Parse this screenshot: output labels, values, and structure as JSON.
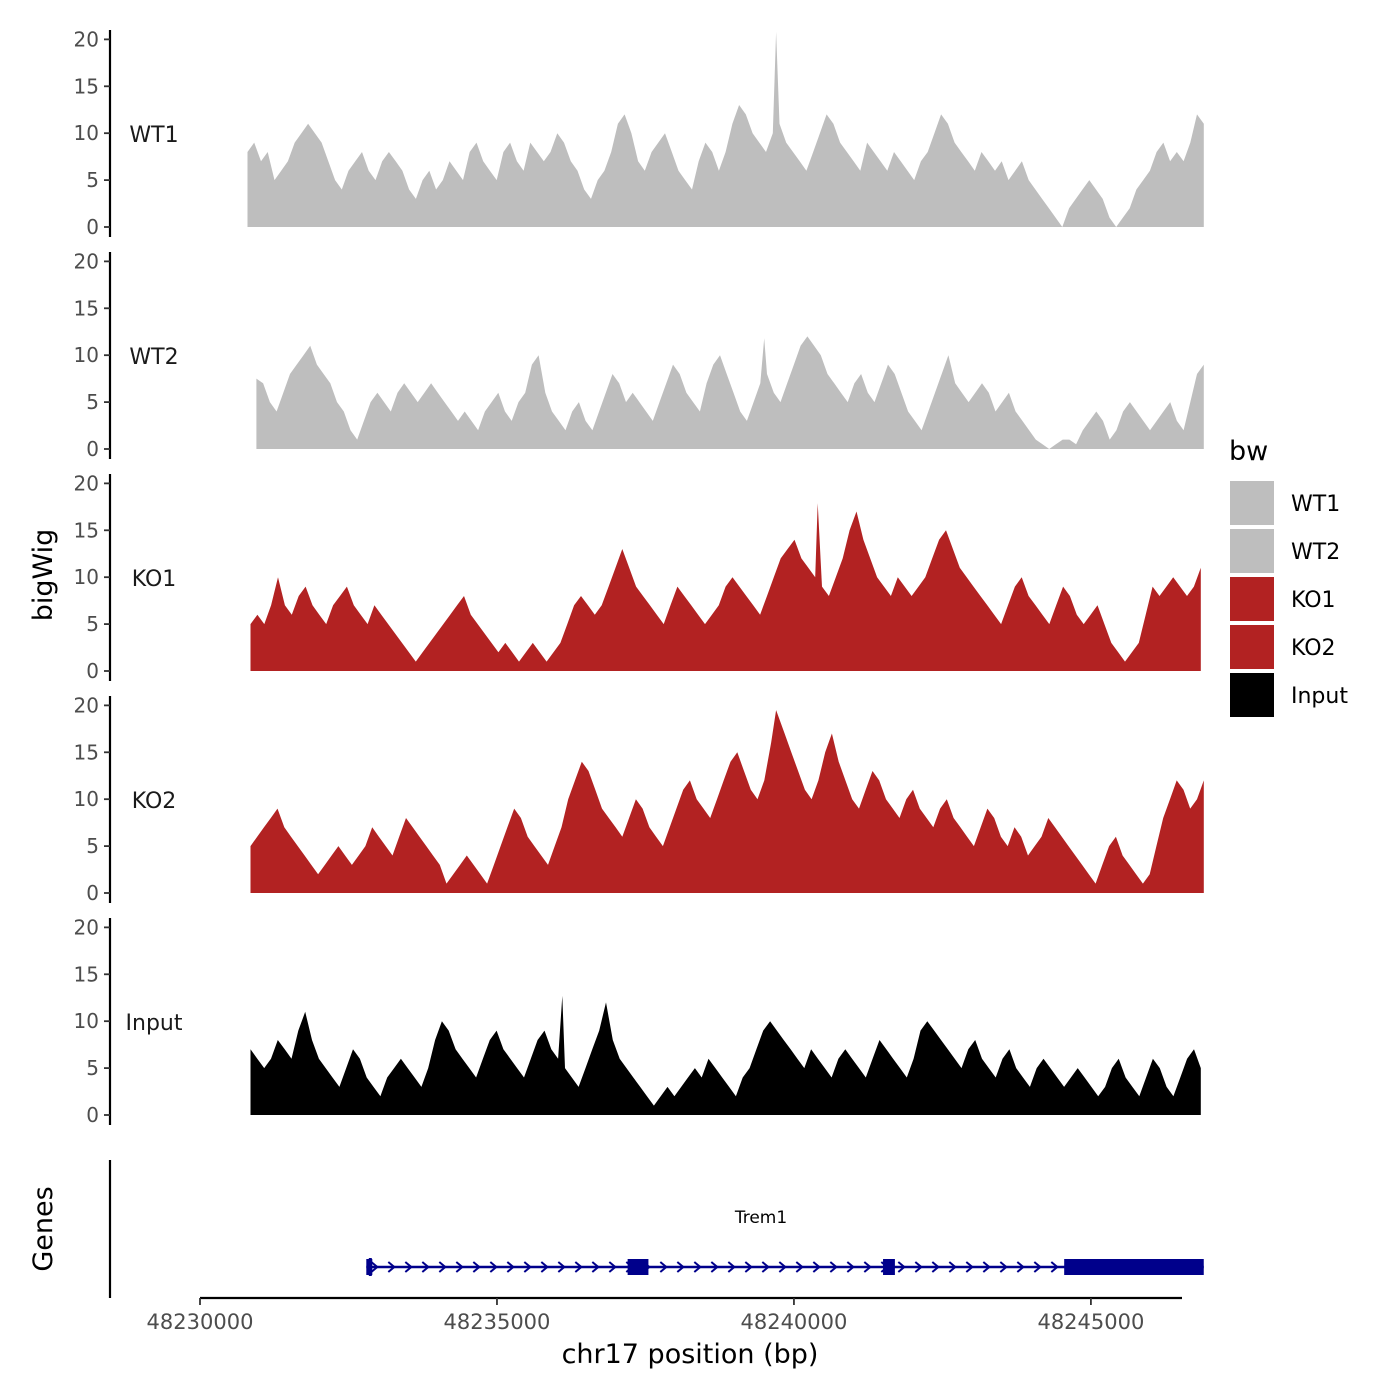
{
  "chart_data": {
    "type": "area",
    "ylabel": "bigWig",
    "xlabel": "chr17 position (bp)",
    "gene_panel_label": "Genes",
    "legend_title": "bw",
    "y_ticks": [
      0,
      5,
      10,
      15,
      20
    ],
    "ylim": [
      0,
      21
    ],
    "xlim": [
      48230000,
      48246500
    ],
    "x_ticks": [
      48230000,
      48235000,
      48240000,
      48245000
    ],
    "x_tick_labels": [
      "48230000",
      "48235000",
      "48240000",
      "48245000"
    ],
    "colors": {
      "WT1": "#bebebe",
      "WT2": "#bebebe",
      "KO1": "#b22222",
      "KO2": "#b22222",
      "Input": "#000000"
    },
    "legend": [
      {
        "name": "WT1",
        "color": "#bebebe"
      },
      {
        "name": "WT2",
        "color": "#bebebe"
      },
      {
        "name": "KO1",
        "color": "#b22222"
      },
      {
        "name": "KO2",
        "color": "#b22222"
      },
      {
        "name": "Input",
        "color": "#000000"
      }
    ],
    "series": [
      {
        "name": "WT1",
        "start": 48230800,
        "end": 48246900,
        "peak_pos": 48239700,
        "peak_val": 20.8,
        "values": [
          8,
          9,
          7,
          8,
          5,
          6,
          7,
          9,
          10,
          11,
          10,
          9,
          7,
          5,
          4,
          6,
          7,
          8,
          6,
          5,
          7,
          8,
          7,
          6,
          4,
          3,
          5,
          6,
          4,
          5,
          7,
          6,
          5,
          8,
          9,
          7,
          6,
          5,
          8,
          9,
          7,
          6,
          9,
          8,
          7,
          8,
          10,
          9,
          7,
          6,
          4,
          3,
          5,
          6,
          8,
          11,
          12,
          10,
          7,
          6,
          8,
          9,
          10,
          8,
          6,
          5,
          4,
          7,
          9,
          8,
          6,
          8,
          11,
          13,
          12,
          10,
          9,
          8,
          10,
          11,
          9,
          8,
          7,
          6,
          8,
          10,
          12,
          11,
          9,
          8,
          7,
          6,
          9,
          8,
          7,
          6,
          8,
          7,
          6,
          5,
          7,
          8,
          10,
          12,
          11,
          9,
          8,
          7,
          6,
          8,
          7,
          6,
          7,
          5,
          6,
          7,
          5,
          4,
          3,
          2,
          1,
          0,
          2,
          3,
          4,
          5,
          4,
          3,
          1,
          0,
          1,
          2,
          4,
          5,
          6,
          8,
          9,
          7,
          8,
          7,
          9,
          12,
          11
        ]
      },
      {
        "name": "WT2",
        "start": 48230950,
        "end": 48246900,
        "peak_pos": 48239500,
        "peak_val": 11.8,
        "values": [
          7.5,
          7,
          5,
          4,
          6,
          8,
          9,
          10,
          11,
          9,
          8,
          7,
          5,
          4,
          2,
          1,
          3,
          5,
          6,
          5,
          4,
          6,
          7,
          6,
          5,
          6,
          7,
          6,
          5,
          4,
          3,
          4,
          3,
          2,
          4,
          5,
          6,
          4,
          3,
          5,
          6,
          9,
          10,
          6,
          4,
          3,
          2,
          4,
          5,
          3,
          2,
          4,
          6,
          8,
          7,
          5,
          6,
          5,
          4,
          3,
          5,
          7,
          9,
          8,
          6,
          5,
          4,
          7,
          9,
          10,
          8,
          6,
          4,
          3,
          5,
          7,
          8,
          6,
          5,
          7,
          9,
          11,
          12,
          11,
          10,
          8,
          7,
          6,
          5,
          7,
          8,
          6,
          5,
          7,
          9,
          8,
          6,
          4,
          3,
          2,
          4,
          6,
          8,
          10,
          7,
          6,
          5,
          6,
          7,
          6,
          4,
          5,
          6,
          4,
          3,
          2,
          1,
          0.5,
          0,
          0.5,
          1,
          1,
          0.5,
          2,
          3,
          4,
          3,
          1,
          2,
          4,
          5,
          4,
          3,
          2,
          3,
          4,
          5,
          3,
          2,
          5,
          8,
          9
        ]
      },
      {
        "name": "KO1",
        "start": 48230850,
        "end": 48246850,
        "peak_pos": 48240400,
        "peak_val": 17.9,
        "values": [
          5,
          6,
          5,
          7,
          10,
          7,
          6,
          8,
          9,
          7,
          6,
          5,
          7,
          8,
          9,
          7,
          6,
          5,
          7,
          6,
          5,
          4,
          3,
          2,
          1,
          2,
          3,
          4,
          5,
          6,
          7,
          8,
          6,
          5,
          4,
          3,
          2,
          3,
          2,
          1,
          2,
          3,
          2,
          1,
          2,
          3,
          5,
          7,
          8,
          7,
          6,
          7,
          9,
          11,
          13,
          11,
          9,
          8,
          7,
          6,
          5,
          7,
          9,
          8,
          7,
          6,
          5,
          6,
          7,
          9,
          10,
          9,
          8,
          7,
          6,
          8,
          10,
          12,
          13,
          14,
          12,
          11,
          10,
          9,
          8,
          10,
          12,
          15,
          17,
          14,
          12,
          10,
          9,
          8,
          10,
          9,
          8,
          9,
          10,
          12,
          14,
          15,
          13,
          11,
          10,
          9,
          8,
          7,
          6,
          5,
          7,
          9,
          10,
          8,
          7,
          6,
          5,
          7,
          9,
          8,
          6,
          5,
          6,
          7,
          5,
          3,
          2,
          1,
          2,
          3,
          6,
          9,
          8,
          9,
          10,
          9,
          8,
          9,
          11
        ]
      },
      {
        "name": "KO2",
        "start": 48230850,
        "end": 48246900,
        "peak_pos": 48239700,
        "peak_val": 19.5,
        "values": [
          5,
          6,
          7,
          8,
          9,
          7,
          6,
          5,
          4,
          3,
          2,
          3,
          4,
          5,
          4,
          3,
          4,
          5,
          7,
          6,
          5,
          4,
          6,
          8,
          7,
          6,
          5,
          4,
          3,
          1,
          2,
          3,
          4,
          3,
          2,
          1,
          3,
          5,
          7,
          9,
          8,
          6,
          5,
          4,
          3,
          5,
          7,
          10,
          12,
          14,
          13,
          11,
          9,
          8,
          7,
          6,
          8,
          10,
          9,
          7,
          6,
          5,
          7,
          9,
          11,
          12,
          10,
          9,
          8,
          10,
          12,
          14,
          15,
          13,
          11,
          10,
          12,
          16,
          19,
          17,
          15,
          13,
          11,
          10,
          12,
          15,
          17,
          14,
          12,
          10,
          9,
          11,
          13,
          12,
          10,
          9,
          8,
          10,
          11,
          9,
          8,
          7,
          9,
          10,
          8,
          7,
          6,
          5,
          7,
          9,
          8,
          6,
          5,
          7,
          6,
          4,
          5,
          6,
          8,
          7,
          6,
          5,
          4,
          3,
          2,
          1,
          3,
          5,
          6,
          4,
          3,
          2,
          1,
          2,
          5,
          8,
          10,
          12,
          11,
          9,
          10,
          12
        ]
      },
      {
        "name": "Input",
        "start": 48230850,
        "end": 48246850,
        "peak_pos": 48236100,
        "peak_val": 12.7,
        "values": [
          7,
          6,
          5,
          6,
          8,
          7,
          6,
          9,
          11,
          8,
          6,
          5,
          4,
          3,
          5,
          7,
          6,
          4,
          3,
          2,
          4,
          5,
          6,
          5,
          4,
          3,
          5,
          8,
          10,
          9,
          7,
          6,
          5,
          4,
          6,
          8,
          9,
          7,
          6,
          5,
          4,
          6,
          8,
          9,
          7,
          6,
          5,
          4,
          3,
          5,
          7,
          9,
          12,
          8,
          6,
          5,
          4,
          3,
          2,
          1,
          2,
          3,
          2,
          3,
          4,
          5,
          4,
          6,
          5,
          4,
          3,
          2,
          4,
          5,
          7,
          9,
          10,
          9,
          8,
          7,
          6,
          5,
          7,
          6,
          5,
          4,
          6,
          7,
          6,
          5,
          4,
          6,
          8,
          7,
          6,
          5,
          4,
          6,
          9,
          10,
          9,
          8,
          7,
          6,
          5,
          7,
          8,
          6,
          5,
          4,
          6,
          7,
          5,
          4,
          3,
          5,
          6,
          5,
          4,
          3,
          4,
          5,
          4,
          3,
          2,
          3,
          5,
          6,
          4,
          3,
          2,
          4,
          6,
          5,
          3,
          2,
          4,
          6,
          7,
          5
        ]
      }
    ],
    "gene": {
      "name": "Trem1",
      "start": 48232800,
      "end": 48246900,
      "strand": "+",
      "exons": [
        {
          "start": 48232800,
          "end": 48232900
        },
        {
          "start": 48237200,
          "end": 48237550
        },
        {
          "start": 48241500,
          "end": 48241700
        },
        {
          "start": 48244550,
          "end": 48246900
        }
      ],
      "color": "#00008b"
    }
  }
}
